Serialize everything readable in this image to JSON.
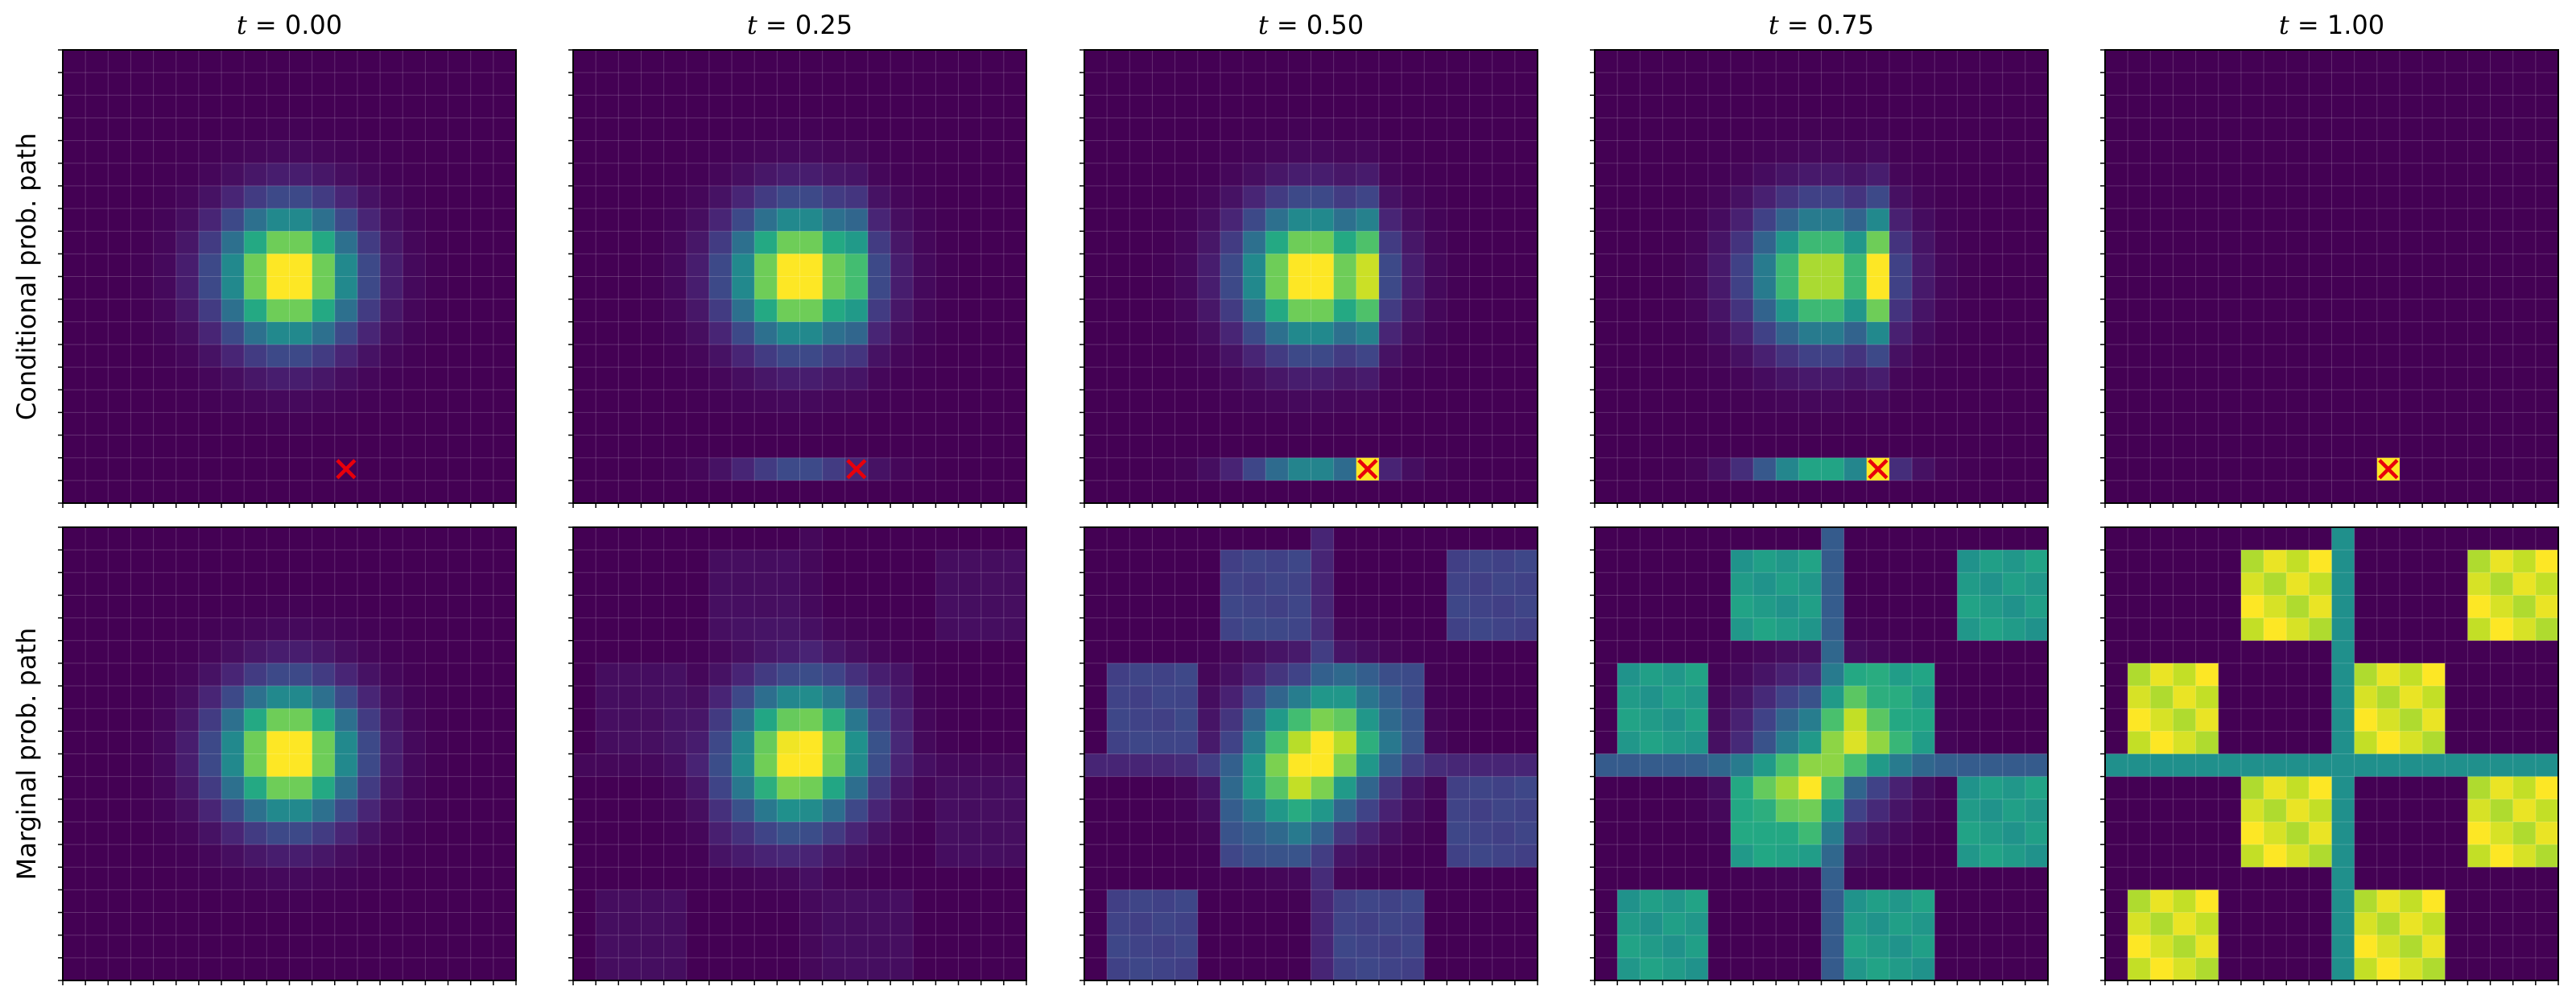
{
  "chart_data": {
    "type": "heatmap",
    "description_grid": "20x20 cell probability grids; values in [0,1]",
    "columns": [
      "t = 0.00",
      "t = 0.25",
      "t = 0.50",
      "t = 0.75",
      "t = 1.00"
    ],
    "column_math": [
      {
        "var": "t",
        "value": "0.00"
      },
      {
        "var": "t",
        "value": "0.25"
      },
      {
        "var": "t",
        "value": "0.50"
      },
      {
        "var": "t",
        "value": "0.75"
      },
      {
        "var": "t",
        "value": "1.00"
      }
    ],
    "rows": [
      "Conditional prob. path",
      "Marginal prob. path"
    ],
    "t_values": [
      0.0,
      0.25,
      0.5,
      0.75,
      1.0
    ],
    "grid_size": 20,
    "source": {
      "type": "gaussian",
      "center": [
        10,
        10
      ],
      "sigma": 2.0
    },
    "target_point": {
      "col": 12.5,
      "row": 18.5,
      "marker": "x",
      "color": "#e8000b"
    },
    "target_checkerboard": {
      "blocks": [
        {
          "col0": 1,
          "row0": 6,
          "size": 4
        },
        {
          "col0": 6,
          "row0": 1,
          "size": 4
        },
        {
          "col0": 11,
          "row0": 6,
          "size": 4
        },
        {
          "col0": 16,
          "row0": 1,
          "size": 4
        },
        {
          "col0": 6,
          "row0": 11,
          "size": 4
        },
        {
          "col0": 16,
          "row0": 11,
          "size": 4
        },
        {
          "col0": 1,
          "row0": 16,
          "size": 4
        },
        {
          "col0": 11,
          "row0": 16,
          "size": 4
        }
      ],
      "bar_row": 10,
      "bar_col": 10,
      "bar_level": 0.5
    },
    "colormap": "viridis",
    "grid": true,
    "xlabel": "",
    "ylabel": ""
  }
}
